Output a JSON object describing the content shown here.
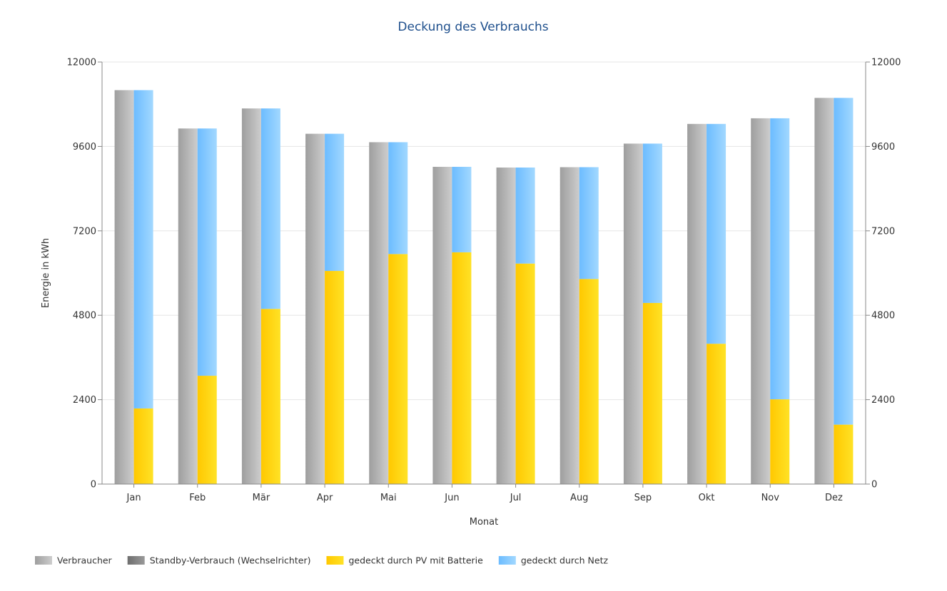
{
  "chart_data": {
    "type": "bar",
    "title": "Deckung des Verbrauchs",
    "xlabel": "Monat",
    "ylabel": "Energie in kWh",
    "ylim": [
      0,
      12000
    ],
    "yticks": [
      0,
      2400,
      4800,
      7200,
      9600,
      12000
    ],
    "right_axis_ticks": true,
    "grid": true,
    "legend_position": "bottom-left",
    "categories": [
      "Jan",
      "Feb",
      "Mär",
      "Apr",
      "Mai",
      "Jun",
      "Jul",
      "Aug",
      "Sep",
      "Okt",
      "Nov",
      "Dez"
    ],
    "series": [
      {
        "name": "Verbraucher",
        "color": "#b4b4b4",
        "stack": "consumption",
        "values": [
          11200,
          10110,
          10680,
          9960,
          9720,
          9020,
          9000,
          9010,
          9680,
          10240,
          10400,
          10980
        ]
      },
      {
        "name": "Standby-Verbrauch (Wechselrichter)",
        "color": "#808080",
        "stack": "consumption",
        "values": [
          0,
          0,
          0,
          0,
          0,
          0,
          0,
          0,
          0,
          0,
          0,
          0
        ]
      },
      {
        "name": "gedeckt durch PV mit Batterie",
        "color": "#ffd400",
        "stack": "coverage",
        "values": [
          2150,
          3080,
          4980,
          6060,
          6540,
          6590,
          6270,
          5830,
          5150,
          3990,
          2410,
          1690
        ]
      },
      {
        "name": "gedeckt durch Netz",
        "color": "#7fc8ff",
        "stack": "coverage",
        "values": [
          9050,
          7030,
          5700,
          3900,
          3180,
          2430,
          2730,
          3180,
          4530,
          6250,
          7990,
          9290
        ]
      }
    ]
  }
}
